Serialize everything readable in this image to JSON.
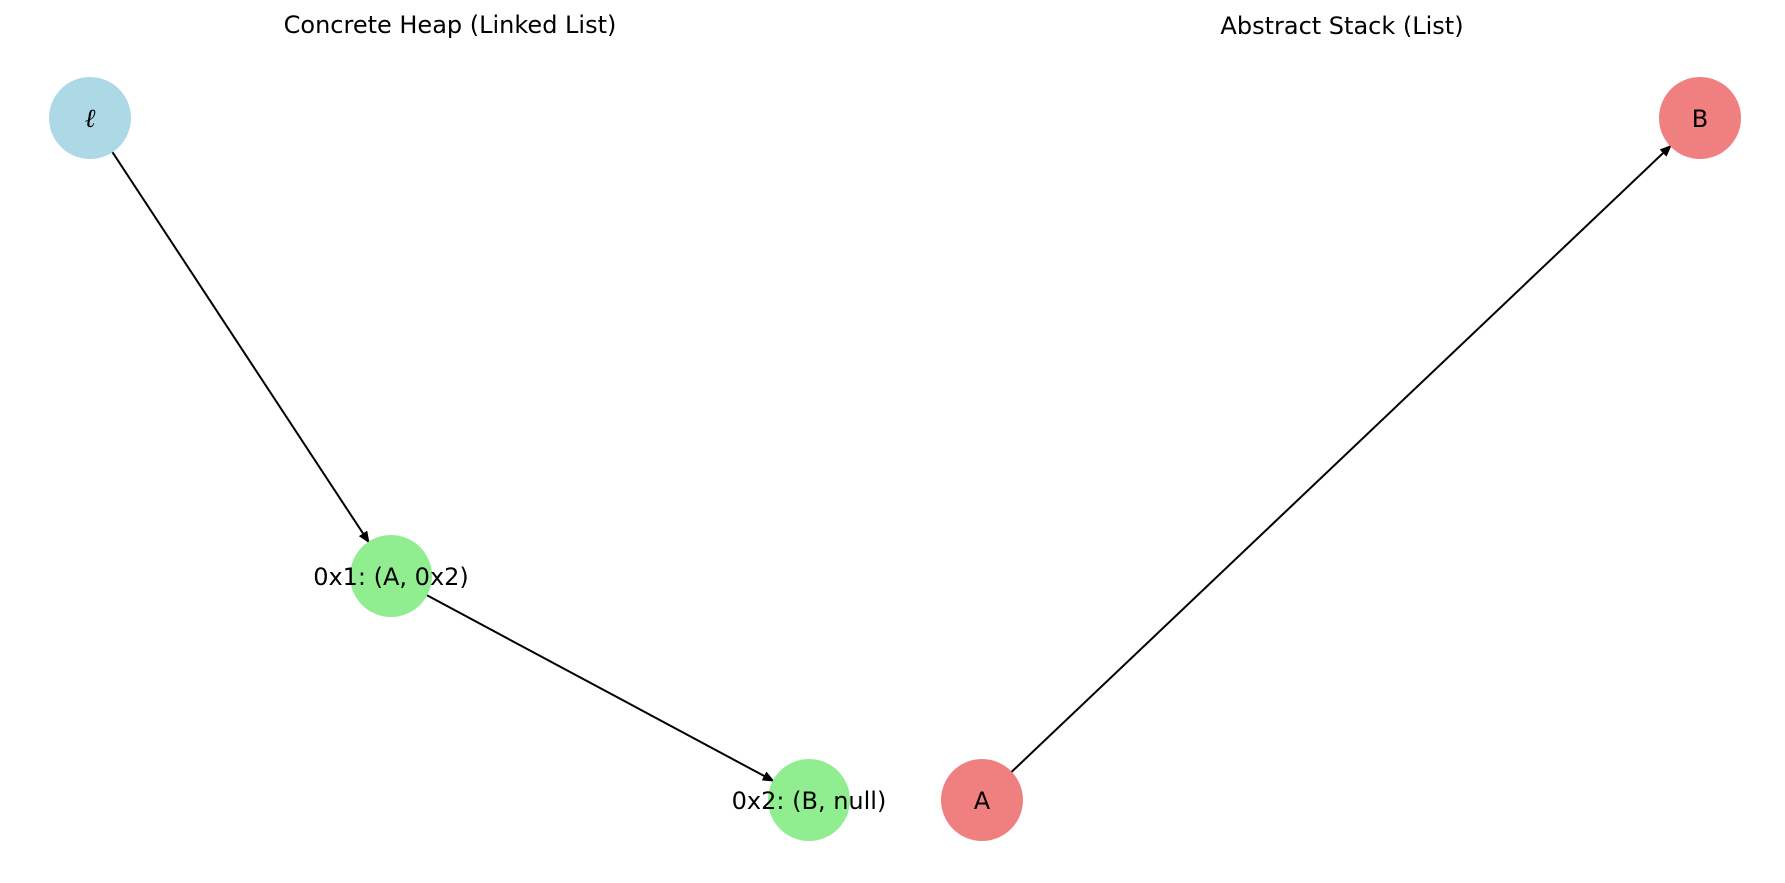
{
  "panels": [
    {
      "title": "Concrete Heap (Linked List)",
      "nodes": [
        {
          "id": "ell",
          "label": "ℓ",
          "color": "#add8e6",
          "italic": true
        },
        {
          "id": "n1",
          "label": "0x1: (A, 0x2)",
          "color": "#90ee90",
          "italic": false
        },
        {
          "id": "n2",
          "label": "0x2: (B, null)",
          "color": "#90ee90",
          "italic": false
        }
      ],
      "edges": [
        {
          "from": "ell",
          "to": "n1"
        },
        {
          "from": "n1",
          "to": "n2"
        }
      ]
    },
    {
      "title": "Abstract Stack (List)",
      "nodes": [
        {
          "id": "A",
          "label": "A",
          "color": "#f08080",
          "italic": false
        },
        {
          "id": "B",
          "label": "B",
          "color": "#f08080",
          "italic": false
        }
      ],
      "edges": [
        {
          "from": "A",
          "to": "B"
        }
      ]
    }
  ]
}
